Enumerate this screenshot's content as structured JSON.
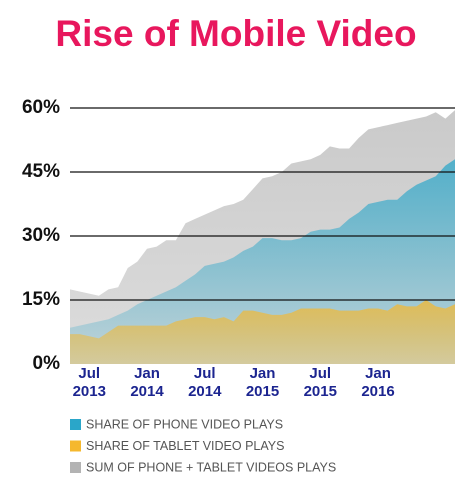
{
  "chart_data": {
    "type": "area",
    "title": "Rise of Mobile Video",
    "categories": [
      null,
      null,
      "Jul 2013",
      null,
      null,
      null,
      null,
      null,
      "Jan 2014",
      null,
      null,
      null,
      null,
      null,
      "Jul 2014",
      null,
      null,
      null,
      null,
      null,
      "Jan 2015",
      null,
      null,
      null,
      null,
      null,
      "Jul 2015",
      null,
      null,
      null,
      null,
      null,
      "Jan 2016",
      null,
      null,
      null,
      null,
      null,
      null,
      null,
      null
    ],
    "series": [
      {
        "name": "SUM OF PHONE + TABLET VIDEOS PLAYS",
        "color": "#b3b3b3",
        "values": [
          17.5,
          17,
          16.5,
          16,
          17.5,
          18,
          22.5,
          24,
          27,
          27.5,
          29,
          29,
          33,
          34,
          35,
          36,
          37,
          37.5,
          38.5,
          41,
          43.5,
          44,
          45,
          47,
          47.5,
          48,
          49,
          51,
          50.5,
          50.5,
          53,
          55,
          55.5,
          56,
          56.5,
          57,
          57.5,
          58,
          59,
          57.5,
          59.5
        ]
      },
      {
        "name": "SHARE OF PHONE VIDEO PLAYS",
        "color": "#2aa6c9",
        "values": [
          8.5,
          9,
          9.5,
          10,
          10.5,
          11.5,
          12.5,
          14,
          15,
          16,
          17,
          18,
          19.5,
          21,
          23,
          23.5,
          24,
          25,
          26.5,
          27.5,
          29.5,
          29.5,
          29,
          29,
          29.5,
          31,
          31.5,
          31.5,
          32,
          34,
          35.5,
          37.5,
          38,
          38.5,
          38.5,
          40.5,
          42,
          43,
          44,
          46.5,
          48
        ]
      },
      {
        "name": "SHARE OF TABLET VIDEO PLAYS",
        "color": "#f5b82e",
        "values": [
          7,
          7,
          6.5,
          6,
          7.5,
          9,
          9,
          9,
          9,
          9,
          9,
          10,
          10.5,
          11,
          11,
          10.5,
          11,
          10,
          12.5,
          12.5,
          12,
          11.5,
          11.5,
          12,
          13,
          13,
          13,
          13,
          12.5,
          12.5,
          12.5,
          13,
          13,
          12.5,
          14,
          13.5,
          13.5,
          15,
          13.5,
          13,
          14
        ]
      }
    ],
    "legend_order": [
      1,
      2,
      0
    ],
    "ylim": [
      0,
      60
    ],
    "yticks": [
      {
        "value": 0,
        "label": "0%"
      },
      {
        "value": 15,
        "label": "15%"
      },
      {
        "value": 30,
        "label": "30%"
      },
      {
        "value": 45,
        "label": "45%"
      },
      {
        "value": 60,
        "label": "60%"
      }
    ],
    "grid": true
  }
}
